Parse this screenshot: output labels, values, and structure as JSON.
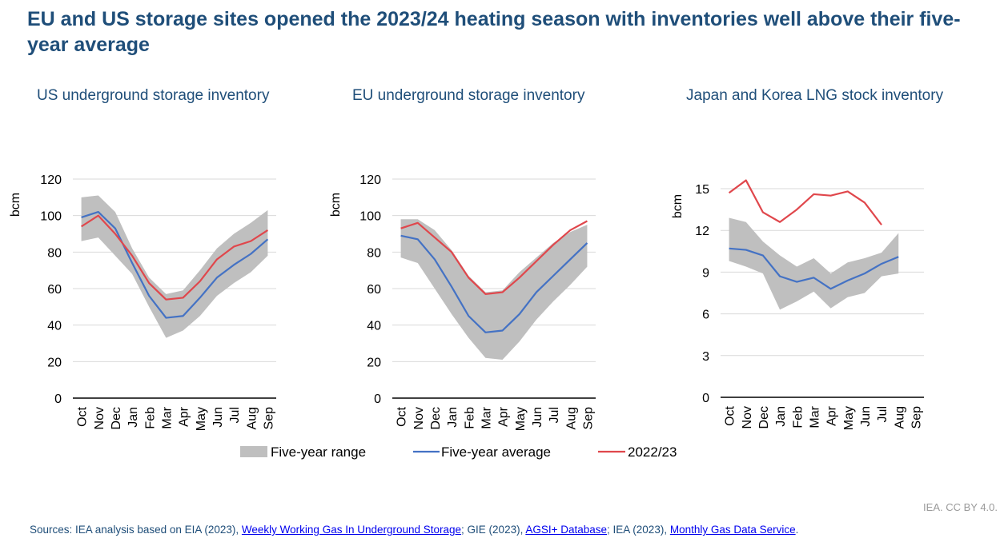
{
  "title": "EU and US storage sites opened the 2023/24 heating season with inventories well above their five-year average",
  "credit": "IEA. CC BY 4.0.",
  "sources": {
    "prefix": "Sources: IEA analysis based on EIA (2023), ",
    "link1": "Weekly Working Gas In Underground Storage",
    "mid1": "; GIE (2023), ",
    "link2": "AGSI+ Database",
    "mid2": "; IEA (2023), ",
    "link3": "Monthly Gas Data Service",
    "suffix": "."
  },
  "colors": {
    "range": "#bfbfbf",
    "average": "#4472c4",
    "current": "#e0474c"
  },
  "legend": {
    "range": "Five-year range",
    "average": "Five-year average",
    "current": "2022/23"
  },
  "chart_data": [
    {
      "type": "line",
      "title": "US underground storage inventory",
      "ylabel": "bcm",
      "ylim": [
        0,
        120
      ],
      "yticks": [
        0,
        20,
        40,
        60,
        80,
        100,
        120
      ],
      "categories": [
        "Oct",
        "Nov",
        "Dec",
        "Jan",
        "Feb",
        "Mar",
        "Apr",
        "May",
        "Jun",
        "Jul",
        "Aug",
        "Sep"
      ],
      "range_low": [
        86,
        88,
        78,
        68,
        50,
        33,
        37,
        45,
        56,
        63,
        69,
        78
      ],
      "range_high": [
        110,
        111,
        102,
        82,
        66,
        57,
        59,
        70,
        82,
        90,
        96,
        103
      ],
      "series": [
        {
          "name": "Five-year average",
          "values": [
            99,
            102,
            93,
            74,
            56,
            44,
            45,
            55,
            66,
            73,
            79,
            87
          ]
        },
        {
          "name": "2022/23",
          "values": [
            94,
            100,
            90,
            78,
            63,
            54,
            55,
            64,
            76,
            83,
            86,
            92
          ]
        }
      ]
    },
    {
      "type": "line",
      "title": "EU underground storage inventory",
      "ylabel": "bcm",
      "ylim": [
        0,
        120
      ],
      "yticks": [
        0,
        20,
        40,
        60,
        80,
        100,
        120
      ],
      "categories": [
        "Oct",
        "Nov",
        "Dec",
        "Jan",
        "Feb",
        "Mar",
        "Apr",
        "May",
        "Jun",
        "Jul",
        "Aug",
        "Sep"
      ],
      "range_low": [
        77,
        74,
        60,
        46,
        33,
        22,
        21,
        31,
        43,
        53,
        62,
        72
      ],
      "range_high": [
        98,
        98,
        92,
        81,
        67,
        58,
        59,
        69,
        77,
        85,
        91,
        95
      ],
      "series": [
        {
          "name": "Five-year average",
          "values": [
            89,
            87,
            76,
            61,
            45,
            36,
            37,
            46,
            58,
            67,
            76,
            85
          ]
        },
        {
          "name": "2022/23",
          "values": [
            93,
            96,
            88,
            80,
            66,
            57,
            58,
            66,
            75,
            84,
            92,
            97
          ]
        }
      ]
    },
    {
      "type": "line",
      "title": "Japan and Korea LNG stock inventory",
      "ylabel": "bcm",
      "ylim": [
        0,
        15
      ],
      "yticks": [
        0,
        3,
        6,
        9,
        12,
        15
      ],
      "categories": [
        "Oct",
        "Nov",
        "Dec",
        "Jan",
        "Feb",
        "Mar",
        "Apr",
        "May",
        "Jun",
        "Jul",
        "Aug",
        "Sep"
      ],
      "range_low": [
        9.8,
        9.4,
        8.9,
        6.3,
        6.9,
        7.6,
        6.4,
        7.2,
        7.5,
        8.7,
        8.9,
        null
      ],
      "range_high": [
        12.9,
        12.6,
        11.2,
        10.2,
        9.4,
        10.0,
        8.9,
        9.7,
        10.0,
        10.4,
        11.8,
        null
      ],
      "series": [
        {
          "name": "Five-year average",
          "values": [
            10.7,
            10.6,
            10.2,
            8.7,
            8.3,
            8.6,
            7.8,
            8.4,
            8.9,
            9.6,
            10.1,
            null
          ]
        },
        {
          "name": "2022/23",
          "values": [
            14.7,
            15.6,
            13.3,
            12.6,
            13.5,
            14.6,
            14.5,
            14.8,
            14.0,
            12.4,
            null,
            null
          ]
        }
      ]
    }
  ]
}
